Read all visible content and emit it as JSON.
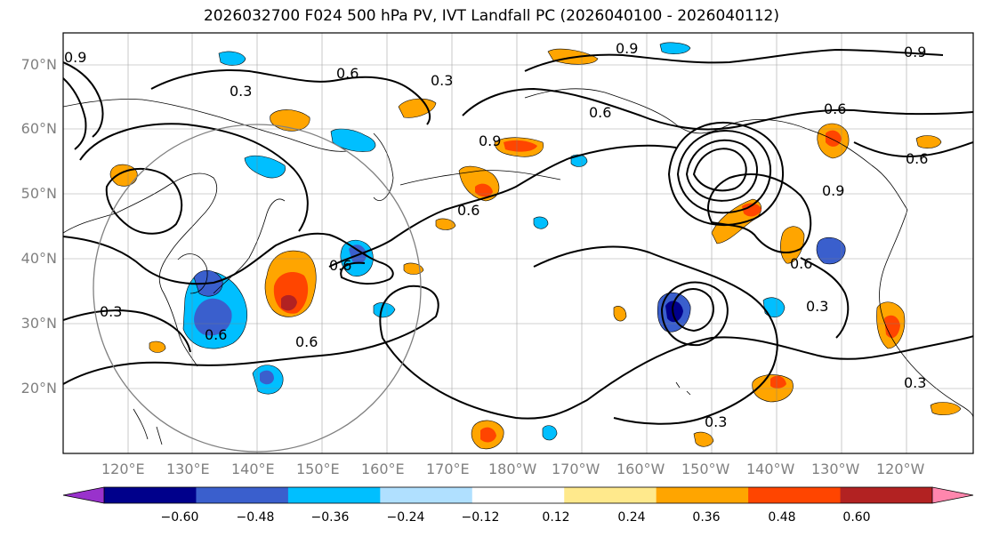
{
  "title": "2026032700 F024 500 hPa PV, IVT Landfall PC (2026040100 - 2026040112)",
  "lat_labels": [
    "70°N",
    "60°N",
    "50°N",
    "40°N",
    "30°N",
    "20°N"
  ],
  "lon_labels": [
    "120°E",
    "130°E",
    "140°E",
    "150°E",
    "160°E",
    "170°E",
    "180°W",
    "170°W",
    "160°W",
    "150°W",
    "140°W",
    "130°W",
    "120°W"
  ],
  "contour_labels": [
    "0.9",
    "0.3",
    "0.6",
    "0.3",
    "0.9",
    "0.6",
    "0.6",
    "0.9",
    "0.9",
    "0.6",
    "0.6",
    "0.6",
    "0.3",
    "0.6",
    "0.6",
    "0.3",
    "0.3",
    "0.3",
    "0.9",
    "0.6"
  ],
  "colorbar": {
    "ticks": [
      "−0.60",
      "−0.48",
      "−0.36",
      "−0.24",
      "−0.12",
      "0.12",
      "0.24",
      "0.36",
      "0.48",
      "0.60"
    ],
    "colors": [
      "#9932cc",
      "#00008b",
      "#3a5fcd",
      "#00bfff",
      "#b0e0ff",
      "#ffffff",
      "#ffe98c",
      "#ffa500",
      "#ff4500",
      "#b22222",
      "#ff86ad"
    ]
  },
  "colors": {
    "coast": "#000000",
    "contour": "#000000",
    "grid": "#808080",
    "circle": "#808080"
  }
}
